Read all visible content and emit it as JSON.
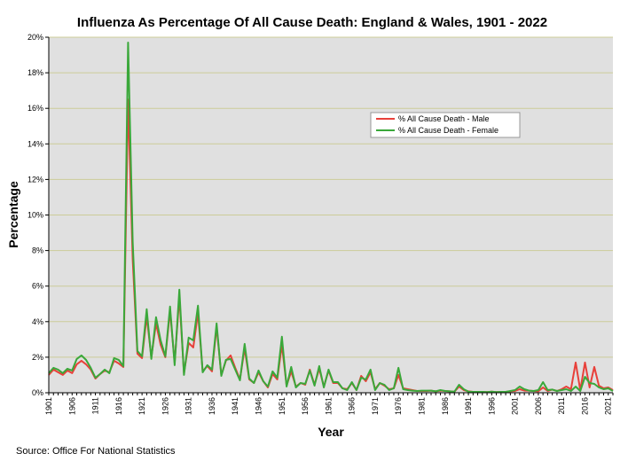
{
  "chart_data": {
    "type": "line",
    "title": "Influenza As Percentage Of All Cause Death: England & Wales, 1901 - 2022",
    "xlabel": "Year",
    "ylabel": "Percentage",
    "xlim": [
      1901,
      2022
    ],
    "ylim": [
      0,
      20
    ],
    "y_ticks": [
      0,
      2,
      4,
      6,
      8,
      10,
      12,
      14,
      16,
      18,
      20
    ],
    "y_tick_labels": [
      "0%",
      "2%",
      "4%",
      "6%",
      "8%",
      "10%",
      "12%",
      "14%",
      "16%",
      "18%",
      "20%"
    ],
    "x_tick_labels": [
      "1901",
      "1906",
      "1911",
      "1916",
      "1921",
      "1926",
      "1931",
      "1936",
      "1941",
      "1946",
      "1951",
      "1956",
      "1961",
      "1966",
      "1971",
      "1976",
      "1981",
      "1986",
      "1991",
      "1996",
      "2001",
      "2006",
      "2011",
      "2016",
      "2021"
    ],
    "grid": true,
    "legend_position": "upper-right",
    "x": [
      1901,
      1902,
      1903,
      1904,
      1905,
      1906,
      1907,
      1908,
      1909,
      1910,
      1911,
      1912,
      1913,
      1914,
      1915,
      1916,
      1917,
      1918,
      1919,
      1920,
      1921,
      1922,
      1923,
      1924,
      1925,
      1926,
      1927,
      1928,
      1929,
      1930,
      1931,
      1932,
      1933,
      1934,
      1935,
      1936,
      1937,
      1938,
      1939,
      1940,
      1941,
      1942,
      1943,
      1944,
      1945,
      1946,
      1947,
      1948,
      1949,
      1950,
      1951,
      1952,
      1953,
      1954,
      1955,
      1956,
      1957,
      1958,
      1959,
      1960,
      1961,
      1962,
      1963,
      1964,
      1965,
      1966,
      1967,
      1968,
      1969,
      1970,
      1971,
      1972,
      1973,
      1974,
      1975,
      1976,
      1977,
      1978,
      1979,
      1980,
      1981,
      1982,
      1983,
      1984,
      1985,
      1986,
      1987,
      1988,
      1989,
      1990,
      1991,
      1992,
      1993,
      1994,
      1995,
      1996,
      1997,
      1998,
      1999,
      2000,
      2001,
      2002,
      2003,
      2004,
      2005,
      2006,
      2007,
      2008,
      2009,
      2010,
      2011,
      2012,
      2013,
      2014,
      2015,
      2016,
      2017,
      2018,
      2019,
      2020,
      2021,
      2022
    ],
    "series": [
      {
        "name": "% All Cause Death - Male",
        "color": "#e8403a",
        "values": [
          1.0,
          1.3,
          1.15,
          1.0,
          1.25,
          1.1,
          1.6,
          1.8,
          1.6,
          1.3,
          0.8,
          1.05,
          1.25,
          1.15,
          1.8,
          1.65,
          1.45,
          16.5,
          7.5,
          2.2,
          1.95,
          4.3,
          2.0,
          3.9,
          2.7,
          2.0,
          4.6,
          1.7,
          5.4,
          1.1,
          2.8,
          2.55,
          4.5,
          1.2,
          1.5,
          1.2,
          3.7,
          1.0,
          1.8,
          2.1,
          1.4,
          0.75,
          2.5,
          0.75,
          0.55,
          1.15,
          0.65,
          0.3,
          1.05,
          0.75,
          2.7,
          0.4,
          1.2,
          0.35,
          0.55,
          0.45,
          1.3,
          0.45,
          1.35,
          0.35,
          1.25,
          0.55,
          0.55,
          0.25,
          0.2,
          0.55,
          0.15,
          0.95,
          0.65,
          1.15,
          0.2,
          0.55,
          0.4,
          0.2,
          0.25,
          1.0,
          0.25,
          0.2,
          0.15,
          0.1,
          0.1,
          0.1,
          0.12,
          0.08,
          0.12,
          0.1,
          0.08,
          0.06,
          0.35,
          0.15,
          0.08,
          0.05,
          0.05,
          0.05,
          0.04,
          0.06,
          0.04,
          0.05,
          0.05,
          0.08,
          0.1,
          0.2,
          0.12,
          0.12,
          0.1,
          0.08,
          0.3,
          0.1,
          0.18,
          0.1,
          0.2,
          0.35,
          0.2,
          1.7,
          0.15,
          1.7,
          0.3,
          1.45,
          0.4,
          0.25,
          0.3,
          0.15
        ]
      },
      {
        "name": "% All Cause Death - Female",
        "color": "#3aa83a",
        "values": [
          1.1,
          1.4,
          1.3,
          1.1,
          1.35,
          1.25,
          1.9,
          2.1,
          1.85,
          1.4,
          0.85,
          1.05,
          1.3,
          1.1,
          1.95,
          1.85,
          1.5,
          19.7,
          8.5,
          2.35,
          2.05,
          4.7,
          1.9,
          4.25,
          2.95,
          2.05,
          4.85,
          1.55,
          5.8,
          1.0,
          3.1,
          2.95,
          4.9,
          1.15,
          1.55,
          1.3,
          3.9,
          0.95,
          1.85,
          1.9,
          1.3,
          0.7,
          2.75,
          0.8,
          0.55,
          1.25,
          0.65,
          0.35,
          1.2,
          0.85,
          3.15,
          0.35,
          1.45,
          0.3,
          0.55,
          0.5,
          1.25,
          0.4,
          1.5,
          0.3,
          1.3,
          0.6,
          0.6,
          0.25,
          0.15,
          0.6,
          0.15,
          0.85,
          0.75,
          1.3,
          0.15,
          0.55,
          0.45,
          0.15,
          0.25,
          1.4,
          0.2,
          0.15,
          0.12,
          0.1,
          0.12,
          0.12,
          0.12,
          0.08,
          0.15,
          0.1,
          0.08,
          0.06,
          0.45,
          0.2,
          0.06,
          0.05,
          0.05,
          0.05,
          0.04,
          0.06,
          0.04,
          0.05,
          0.05,
          0.1,
          0.15,
          0.35,
          0.2,
          0.12,
          0.1,
          0.15,
          0.6,
          0.15,
          0.18,
          0.1,
          0.15,
          0.2,
          0.1,
          0.35,
          0.1,
          0.9,
          0.55,
          0.5,
          0.3,
          0.2,
          0.25,
          0.1
        ]
      }
    ]
  },
  "footer": {
    "source": "Source: Office For National Statistics"
  }
}
